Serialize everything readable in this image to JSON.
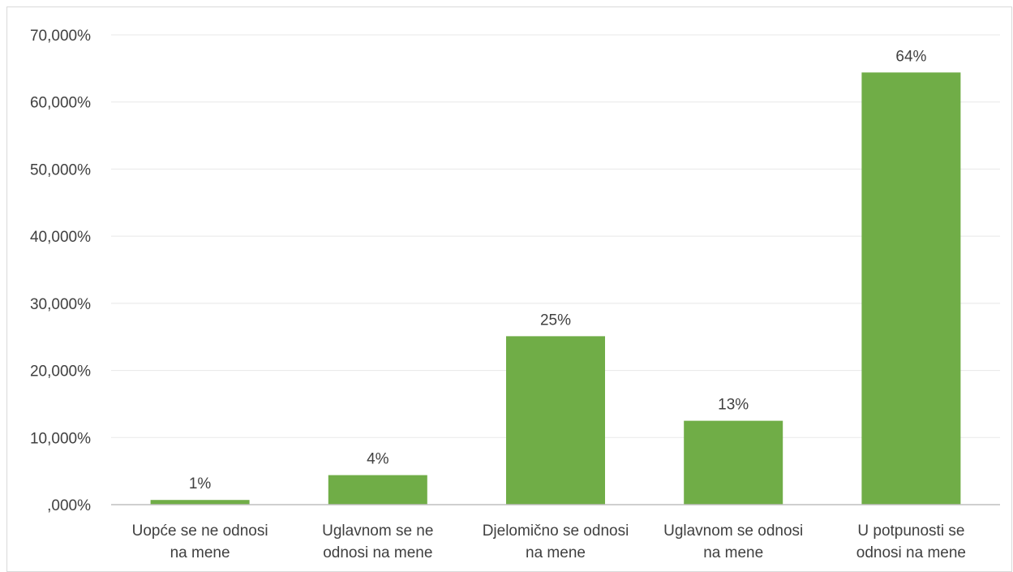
{
  "chart_data": {
    "type": "bar",
    "categories": [
      [
        "Uopće se ne odnosi",
        "na mene"
      ],
      [
        "Uglavnom se ne",
        "odnosi na mene"
      ],
      [
        "Djelomično se odnosi",
        "na mene"
      ],
      [
        "Uglavnom se odnosi",
        "na mene"
      ],
      [
        "U potpunosti se",
        "odnosi na mene"
      ]
    ],
    "values": [
      0.7,
      4.4,
      25.1,
      12.5,
      64.4
    ],
    "data_labels": [
      "1%",
      "4%",
      "25%",
      "13%",
      "64%"
    ],
    "ylim": [
      0,
      70
    ],
    "yticks": [
      0,
      10,
      20,
      30,
      40,
      50,
      60,
      70
    ],
    "ytick_labels": [
      ",000%",
      "10,000%",
      "20,000%",
      "30,000%",
      "40,000%",
      "50,000%",
      "60,000%",
      "70,000%"
    ],
    "bar_color": "#70ad47",
    "grid": true,
    "title": "",
    "xlabel": "",
    "ylabel": ""
  }
}
